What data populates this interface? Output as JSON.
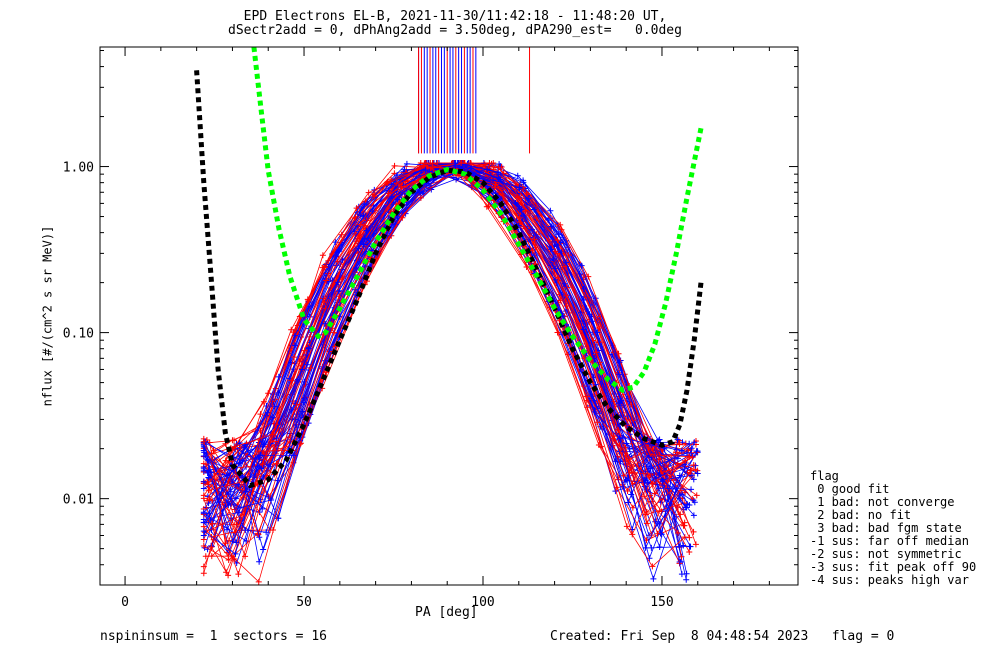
{
  "title_line1": "EPD Electrons EL-B, 2021-11-30/11:42:18 - 11:48:20 UT,",
  "title_line2": "dSectr2add = 0, dPhAng2add = 3.50deg, dPA290_est=   0.0deg",
  "footer_left": "nspininsum =  1  sectors = 16",
  "footer_right": "Created: Fri Sep  8 04:48:54 2023   flag = 0",
  "legend": {
    "title": "flag",
    "items": [
      " 0 good fit",
      " 1 bad: not converge",
      " 2 bad: no fit",
      " 3 bad: bad fgm state",
      "-1 sus: far off median",
      "-2 sus: not symmetric",
      "-3 sus: fit peak off 90",
      "-4 sus: peaks high var"
    ]
  },
  "colors": {
    "red": "#ff0000",
    "blue": "#0000ff",
    "black": "#000000",
    "green": "#00ff00"
  },
  "chart_data": {
    "type": "line",
    "xlabel": "PA [deg]",
    "ylabel": "nflux [#/(cm^2 s sr MeV)]",
    "xlim": [
      -7,
      188
    ],
    "ylim_log10": [
      -2.52,
      0.72
    ],
    "y_scale": "log",
    "xticks": [
      0,
      50,
      100,
      150
    ],
    "yticks": [
      {
        "value": 0.01,
        "label": "0.01"
      },
      {
        "value": 0.1,
        "label": "0.10"
      },
      {
        "value": 1.0,
        "label": "1.00"
      }
    ],
    "series": [
      {
        "color": "black",
        "style": "dashed-thick",
        "x": [
          20,
          22,
          24,
          26,
          28,
          30,
          35,
          40,
          45,
          50,
          55,
          60,
          65,
          70,
          75,
          80,
          85,
          90,
          95,
          100,
          105,
          110,
          115,
          120,
          125,
          130,
          135,
          140,
          145,
          150,
          153,
          155,
          157,
          159,
          161
        ],
        "y": [
          3.8,
          0.8,
          0.22,
          0.06,
          0.025,
          0.016,
          0.012,
          0.013,
          0.017,
          0.028,
          0.05,
          0.09,
          0.16,
          0.3,
          0.5,
          0.7,
          0.86,
          0.95,
          0.93,
          0.8,
          0.6,
          0.4,
          0.24,
          0.14,
          0.08,
          0.05,
          0.035,
          0.027,
          0.023,
          0.021,
          0.022,
          0.028,
          0.045,
          0.09,
          0.21
        ]
      },
      {
        "color": "green",
        "style": "dashed-thick",
        "x": [
          36,
          38,
          40,
          43,
          46,
          50,
          54,
          56,
          60,
          65,
          70,
          75,
          80,
          85,
          90,
          95,
          100,
          105,
          110,
          115,
          120,
          125,
          130,
          135,
          139,
          142,
          145,
          148,
          151,
          154,
          157,
          161
        ],
        "y": [
          5.5,
          2.2,
          0.95,
          0.42,
          0.22,
          0.12,
          0.095,
          0.1,
          0.14,
          0.22,
          0.35,
          0.52,
          0.72,
          0.88,
          0.96,
          0.9,
          0.72,
          0.52,
          0.34,
          0.22,
          0.14,
          0.095,
          0.068,
          0.052,
          0.045,
          0.047,
          0.058,
          0.085,
          0.15,
          0.3,
          0.65,
          1.75
        ]
      }
    ],
    "red_vlines": [
      {
        "x": 82,
        "y_top": 5.0,
        "y_bottom": 1.2
      },
      {
        "x": 113,
        "y_top": 5.0,
        "y_bottom": 1.2
      }
    ],
    "blue_vlines_range": [
      82,
      98
    ],
    "crosses_note": "dense bundle of red and blue pitch-angle distribution traces with + markers"
  }
}
